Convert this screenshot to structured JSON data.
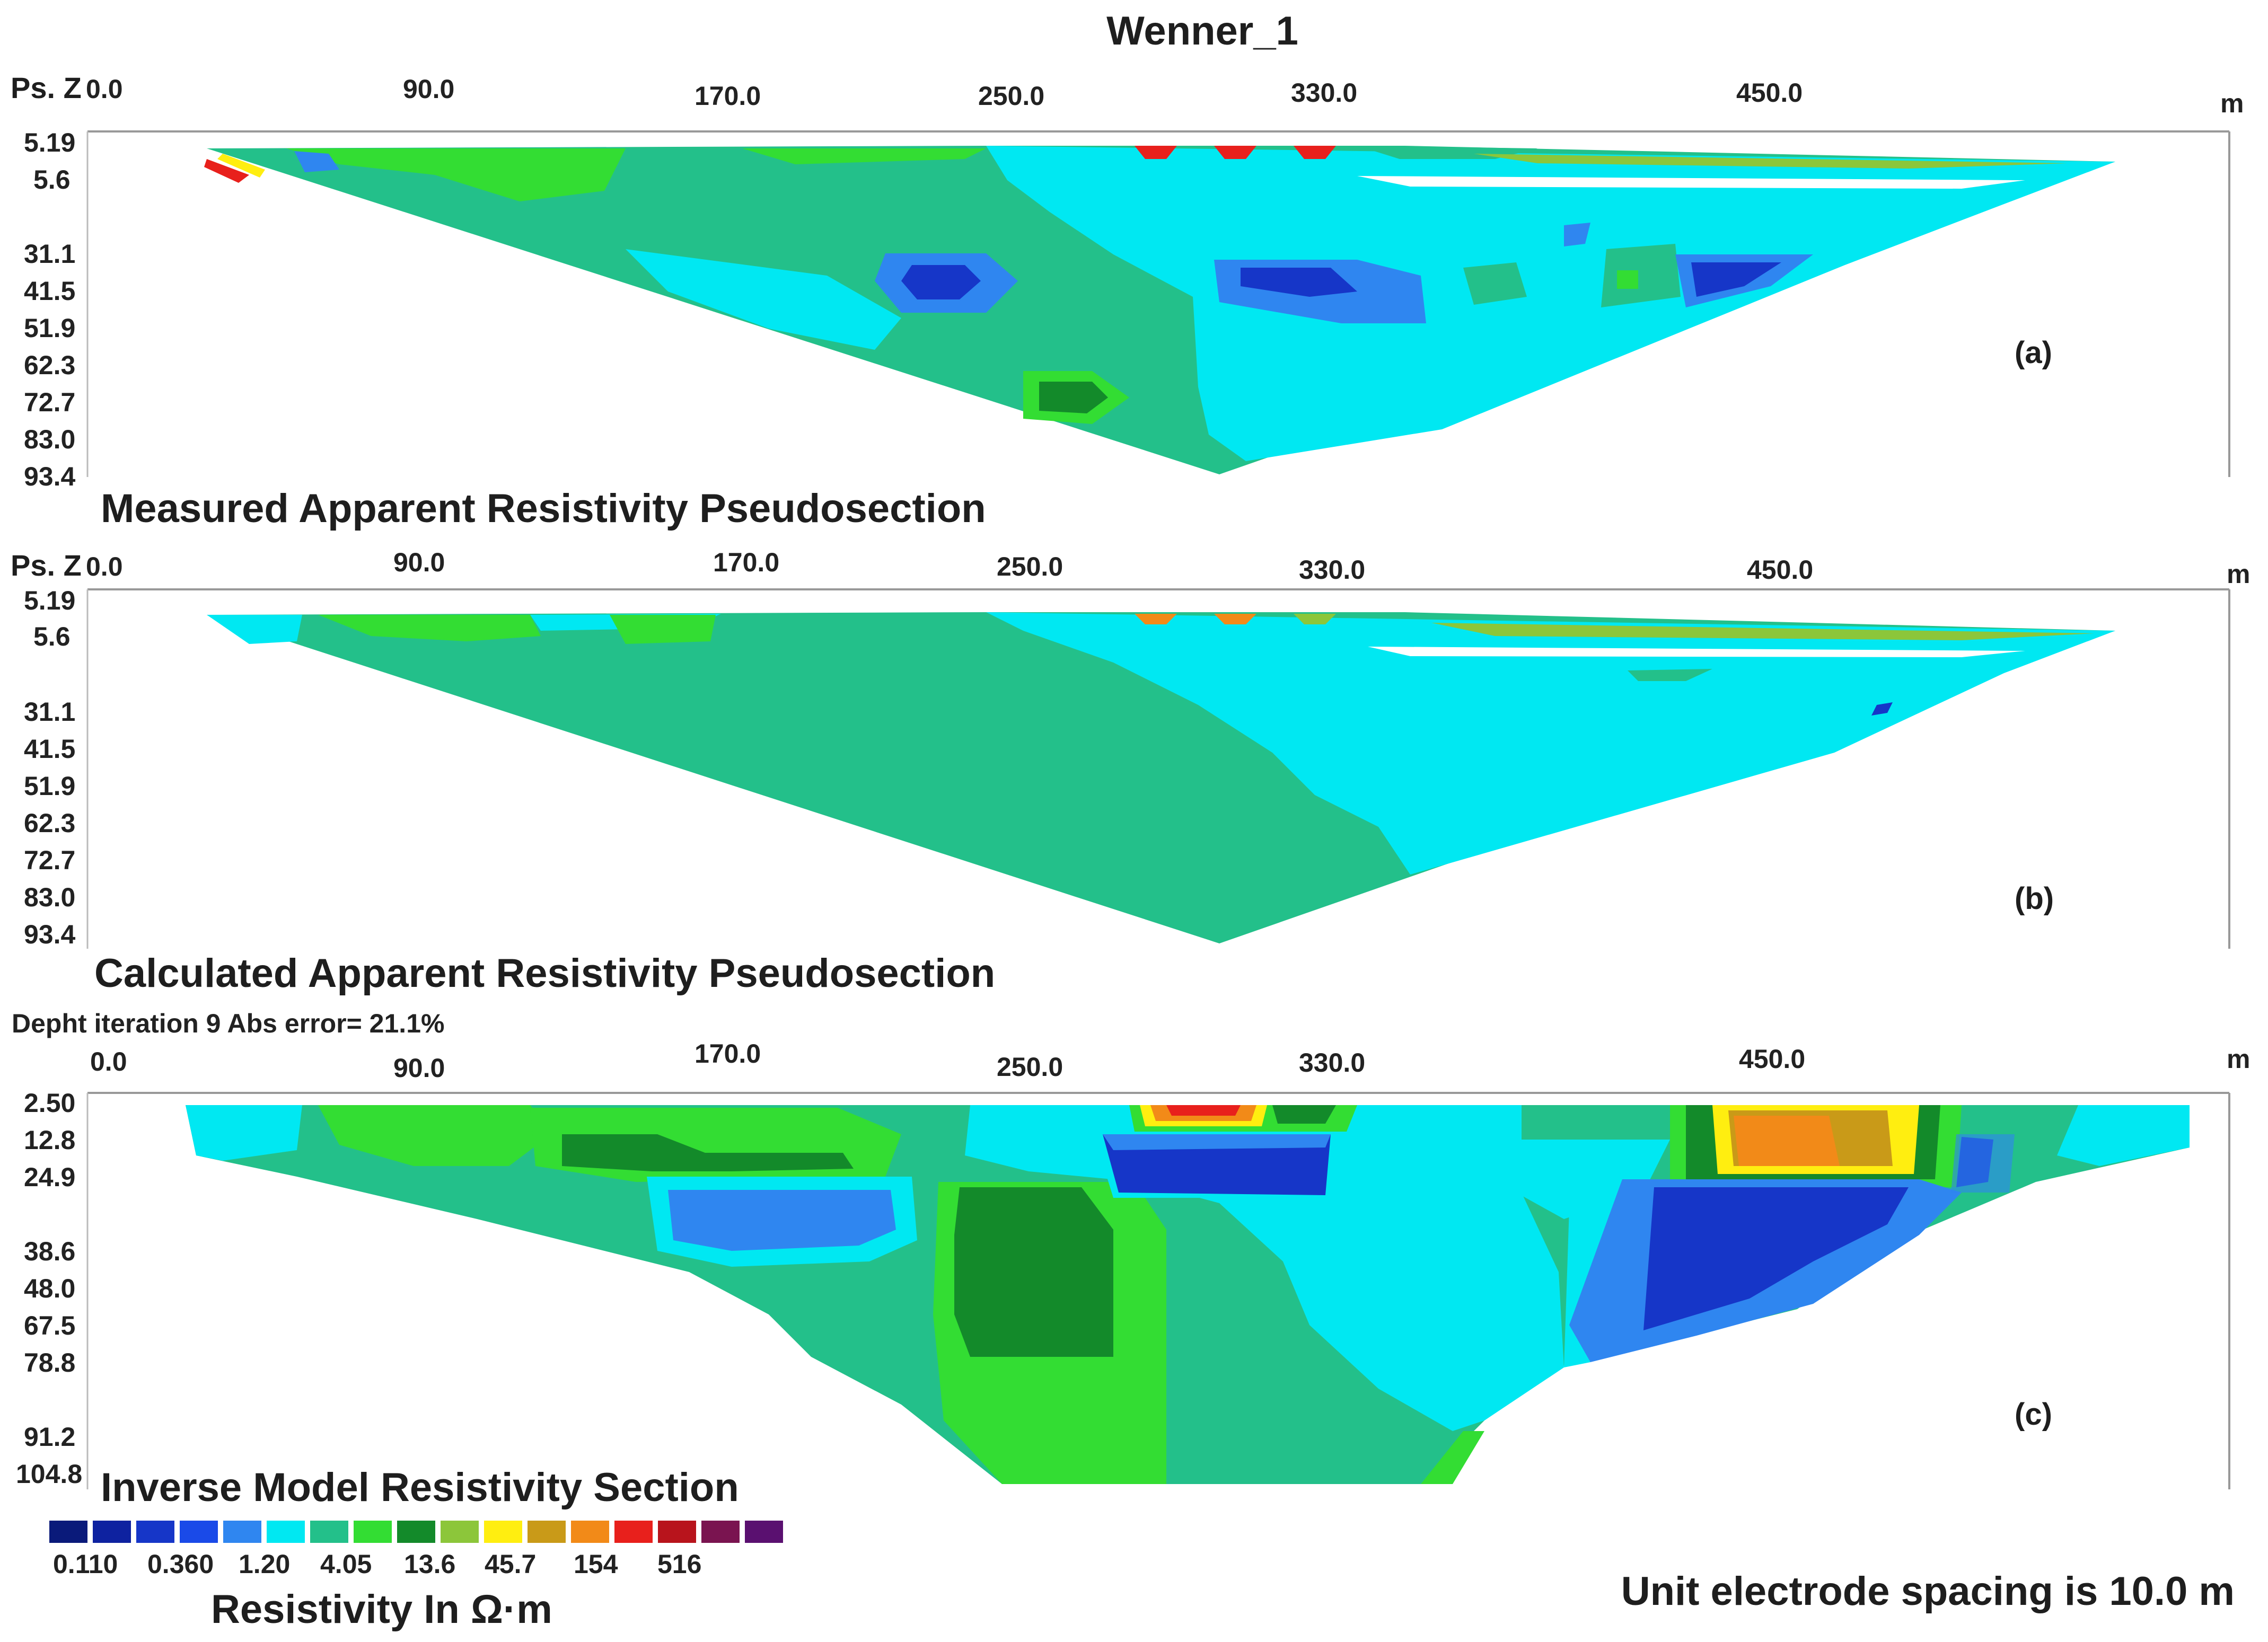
{
  "chart_data": {
    "type": "heatmap",
    "title": "Wenner_1",
    "x_axis_unit": "m",
    "x_ticks": [
      "0.0",
      "90.0",
      "170.0",
      "250.0",
      "330.0",
      "450.0"
    ],
    "colors": {
      "0.110": "#0a1a7a",
      "0.360": "#1636c8",
      "1.20": "#2f86f0",
      "1.20-4.05": "#00e8f2",
      "4.05": "#23c08a",
      "4.05-13.6": "#33dd33",
      "13.6": "#138a2a",
      "13.6-45.7": "#8cc63a",
      "45.7": "#ffee10",
      "45.7-154": "#c99a18",
      "154": "#f28a18",
      "154-516": "#e8201c",
      "516": "#b8141c"
    },
    "panels": [
      {
        "tag": "(a)",
        "caption": "Measured Apparent Resistivity Pseudosection",
        "depth_axis_label": "Ps. Z",
        "depth_ticks": [
          "5.19",
          "5.6",
          "31.1",
          "41.5",
          "51.9",
          "62.3",
          "72.7",
          "83.0",
          "93.4"
        ]
      },
      {
        "tag": "(b)",
        "caption": "Calculated Apparent Resistivity Pseudosection",
        "depth_axis_label": "Ps. Z",
        "depth_ticks": [
          "5.19",
          "5.6",
          "31.1",
          "41.5",
          "51.9",
          "62.3",
          "72.7",
          "83.0",
          "93.4"
        ]
      },
      {
        "tag": "(c)",
        "caption": "Inverse Model Resistivity Section",
        "iteration_note": "Depht iteration 9 Abs error= 21.1%",
        "depth_ticks": [
          "2.50",
          "12.8",
          "24.9",
          "38.6",
          "48.0",
          "67.5",
          "78.8",
          "91.2",
          "104.8"
        ]
      }
    ],
    "legend": {
      "title": "Resistivity In Ω·m",
      "tick_labels": [
        "0.110",
        "0.360",
        "1.20",
        "4.05",
        "13.6",
        "45.7",
        "154",
        "516"
      ],
      "swatch_colors": [
        "#0a1a7a",
        "#0e22a0",
        "#1636c8",
        "#1a4ae8",
        "#2f86f0",
        "#00e8f2",
        "#23c08a",
        "#33dd33",
        "#138a2a",
        "#8cc63a",
        "#ffee10",
        "#c99a18",
        "#f28a18",
        "#e8201c",
        "#b8141c",
        "#7a1450",
        "#5a1070"
      ]
    },
    "footer_note": "Unit electrode spacing is 10.0 m"
  }
}
